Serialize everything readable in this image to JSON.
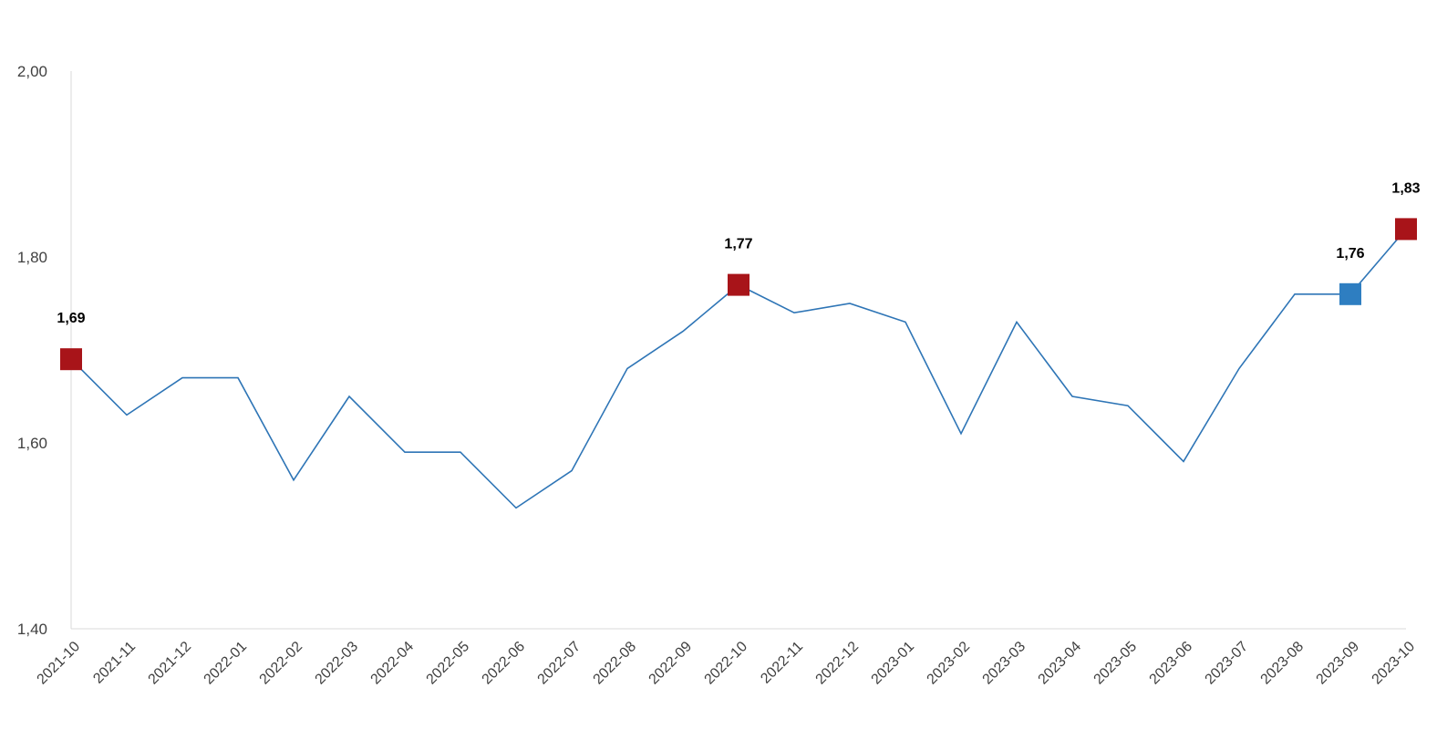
{
  "chart_data": {
    "type": "line",
    "title": "",
    "xlabel": "",
    "ylabel": "",
    "ylim": [
      1.4,
      2.0
    ],
    "yticks": [
      "2,00",
      "1,80",
      "1,60",
      "1,40"
    ],
    "ytick_values": [
      2.0,
      1.8,
      1.6,
      1.4
    ],
    "grid": false,
    "legend": "none",
    "categories": [
      "2021-10",
      "2021-11",
      "2021-12",
      "2022-01",
      "2022-02",
      "2022-03",
      "2022-04",
      "2022-05",
      "2022-06",
      "2022-07",
      "2022-08",
      "2022-09",
      "2022-10",
      "2022-11",
      "2022-12",
      "2023-01",
      "2023-02",
      "2023-03",
      "2023-04",
      "2023-05",
      "2023-06",
      "2023-07",
      "2023-08",
      "2023-09",
      "2023-10"
    ],
    "series": [
      {
        "values": [
          1.69,
          1.63,
          1.67,
          1.67,
          1.56,
          1.65,
          1.59,
          1.59,
          1.53,
          1.57,
          1.68,
          1.72,
          1.77,
          1.74,
          1.75,
          1.73,
          1.61,
          1.73,
          1.65,
          1.64,
          1.58,
          1.68,
          1.76,
          1.76,
          1.83
        ],
        "color": "#2E75B6"
      }
    ],
    "highlighted_points": [
      {
        "category": "2021-10",
        "label": "1,69",
        "color": "#A81419"
      },
      {
        "category": "2022-10",
        "label": "1,77",
        "color": "#A81419"
      },
      {
        "category": "2023-09",
        "label": "1,76",
        "color": "#2E7EC1"
      },
      {
        "category": "2023-10",
        "label": "1,83",
        "color": "#A81419"
      }
    ]
  }
}
